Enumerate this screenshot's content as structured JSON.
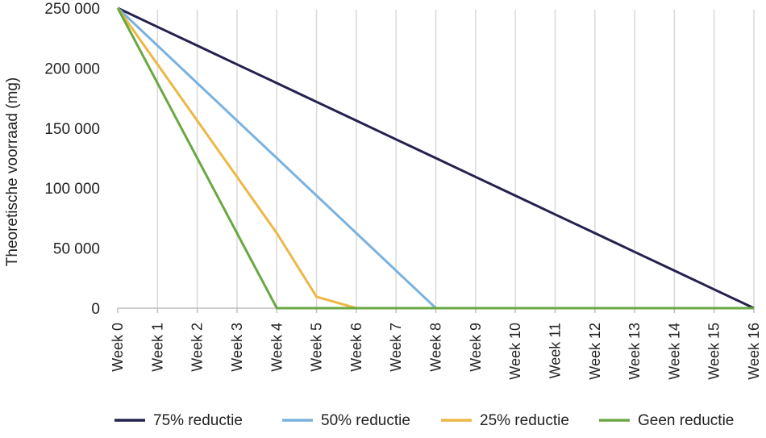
{
  "chart_data": {
    "type": "line",
    "title": "",
    "xlabel": "",
    "ylabel": "Theoretische voorraad (mg)",
    "ylim": [
      0,
      250000
    ],
    "yticks": [
      {
        "value": 0,
        "label": "0"
      },
      {
        "value": 50000,
        "label": "50 000"
      },
      {
        "value": 100000,
        "label": "100 000"
      },
      {
        "value": 150000,
        "label": "150 000"
      },
      {
        "value": 200000,
        "label": "200 000"
      },
      {
        "value": 250000,
        "label": "250 000"
      }
    ],
    "categories": [
      "Week 0",
      "Week 1",
      "Week 2",
      "Week 3",
      "Week 4",
      "Week 5",
      "Week 6",
      "Week 7",
      "Week 8",
      "Week 9",
      "Week 10",
      "Week 11",
      "Week 12",
      "Week 13",
      "Week 14",
      "Week 15",
      "Week 16"
    ],
    "legend_position": "bottom",
    "series": [
      {
        "name": "75% reductie",
        "color": "#24214f",
        "values": [
          250000,
          234375,
          218750,
          203125,
          187500,
          171875,
          156250,
          140625,
          125000,
          109375,
          93750,
          78125,
          62500,
          46875,
          31250,
          15625,
          0
        ]
      },
      {
        "name": "50% reductie",
        "color": "#7ab2e0",
        "values": [
          250000,
          218750,
          187500,
          156250,
          125000,
          93750,
          62500,
          31250,
          0,
          0,
          0,
          0,
          0,
          0,
          0,
          0,
          0
        ]
      },
      {
        "name": "25% reductie",
        "color": "#ecb744",
        "values": [
          250000,
          203125,
          156250,
          109375,
          62500,
          9500,
          0,
          0,
          0,
          0,
          0,
          0,
          0,
          0,
          0,
          0,
          0
        ]
      },
      {
        "name": "Geen reductie",
        "color": "#6aa843",
        "values": [
          250000,
          187500,
          125000,
          62500,
          0,
          0,
          0,
          0,
          0,
          0,
          0,
          0,
          0,
          0,
          0,
          0,
          0
        ]
      }
    ],
    "grid": {
      "vertical": true,
      "horizontal": false,
      "color": "#d9d9d9"
    },
    "axis_color": "#bfbfbf"
  }
}
